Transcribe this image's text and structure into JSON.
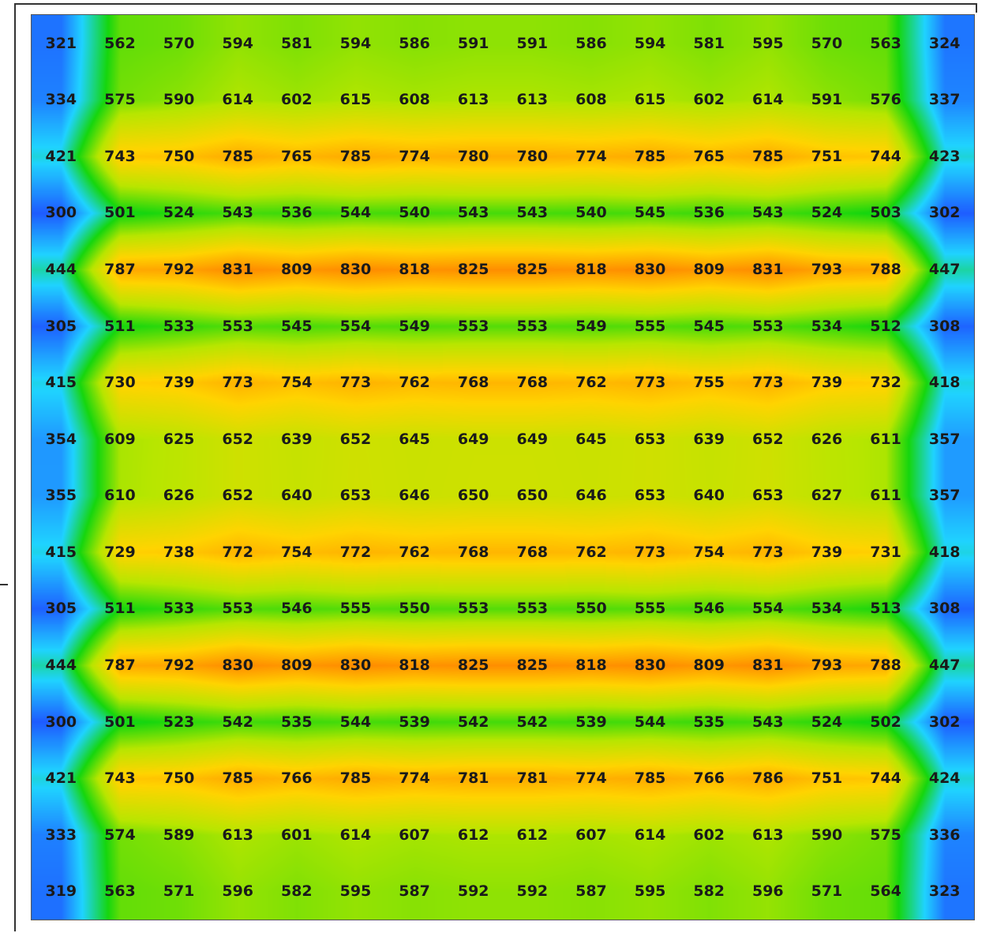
{
  "chart_data": {
    "type": "heatmap",
    "title": "",
    "xlabel": "",
    "ylabel": "",
    "colormap": [
      "#1e5bff",
      "#1fd3ff",
      "#16d60e",
      "#b8e600",
      "#ffd400",
      "#ff8a00"
    ],
    "value_range": [
      300,
      831
    ],
    "grid": [
      [
        321,
        562,
        570,
        594,
        581,
        594,
        586,
        591,
        591,
        586,
        594,
        581,
        595,
        570,
        563,
        324
      ],
      [
        334,
        575,
        590,
        614,
        602,
        615,
        608,
        613,
        613,
        608,
        615,
        602,
        614,
        591,
        576,
        337
      ],
      [
        421,
        743,
        750,
        785,
        765,
        785,
        774,
        780,
        780,
        774,
        785,
        765,
        785,
        751,
        744,
        423
      ],
      [
        300,
        501,
        524,
        543,
        536,
        544,
        540,
        543,
        543,
        540,
        545,
        536,
        543,
        524,
        503,
        302
      ],
      [
        444,
        787,
        792,
        831,
        809,
        830,
        818,
        825,
        825,
        818,
        830,
        809,
        831,
        793,
        788,
        447
      ],
      [
        305,
        511,
        533,
        553,
        545,
        554,
        549,
        553,
        553,
        549,
        555,
        545,
        553,
        534,
        512,
        308
      ],
      [
        415,
        730,
        739,
        773,
        754,
        773,
        762,
        768,
        768,
        762,
        773,
        755,
        773,
        739,
        732,
        418
      ],
      [
        354,
        609,
        625,
        652,
        639,
        652,
        645,
        649,
        649,
        645,
        653,
        639,
        652,
        626,
        611,
        357
      ],
      [
        355,
        610,
        626,
        652,
        640,
        653,
        646,
        650,
        650,
        646,
        653,
        640,
        653,
        627,
        611,
        357
      ],
      [
        415,
        729,
        738,
        772,
        754,
        772,
        762,
        768,
        768,
        762,
        773,
        754,
        773,
        739,
        731,
        418
      ],
      [
        305,
        511,
        533,
        553,
        546,
        555,
        550,
        553,
        553,
        550,
        555,
        546,
        554,
        534,
        513,
        308
      ],
      [
        444,
        787,
        792,
        830,
        809,
        830,
        818,
        825,
        825,
        818,
        830,
        809,
        831,
        793,
        788,
        447
      ],
      [
        300,
        501,
        523,
        542,
        535,
        544,
        539,
        542,
        542,
        539,
        544,
        535,
        543,
        524,
        502,
        302
      ],
      [
        421,
        743,
        750,
        785,
        766,
        785,
        774,
        781,
        781,
        774,
        785,
        766,
        786,
        751,
        744,
        424
      ],
      [
        333,
        574,
        589,
        613,
        601,
        614,
        607,
        612,
        612,
        607,
        614,
        602,
        613,
        590,
        575,
        336
      ],
      [
        319,
        563,
        571,
        596,
        582,
        595,
        587,
        592,
        592,
        587,
        595,
        582,
        596,
        571,
        564,
        323
      ]
    ]
  }
}
